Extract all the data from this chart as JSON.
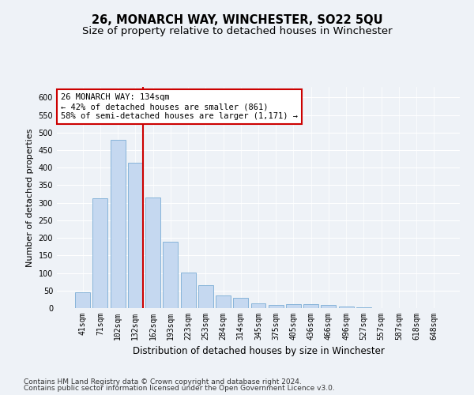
{
  "title": "26, MONARCH WAY, WINCHESTER, SO22 5QU",
  "subtitle": "Size of property relative to detached houses in Winchester",
  "xlabel": "Distribution of detached houses by size in Winchester",
  "ylabel": "Number of detached properties",
  "categories": [
    "41sqm",
    "71sqm",
    "102sqm",
    "132sqm",
    "162sqm",
    "193sqm",
    "223sqm",
    "253sqm",
    "284sqm",
    "314sqm",
    "345sqm",
    "375sqm",
    "405sqm",
    "436sqm",
    "466sqm",
    "496sqm",
    "527sqm",
    "557sqm",
    "587sqm",
    "618sqm",
    "648sqm"
  ],
  "values": [
    45,
    312,
    480,
    415,
    315,
    190,
    102,
    65,
    37,
    30,
    13,
    10,
    12,
    12,
    8,
    5,
    3,
    1,
    1,
    1,
    1
  ],
  "bar_color": "#c5d8f0",
  "bar_edge_color": "#7aadd4",
  "bar_width": 0.85,
  "red_line_index": 3,
  "red_line_color": "#cc0000",
  "annotation_text": "26 MONARCH WAY: 134sqm\n← 42% of detached houses are smaller (861)\n58% of semi-detached houses are larger (1,171) →",
  "annotation_box_color": "#ffffff",
  "annotation_box_edge": "#cc0000",
  "ylim": [
    0,
    630
  ],
  "yticks": [
    0,
    50,
    100,
    150,
    200,
    250,
    300,
    350,
    400,
    450,
    500,
    550,
    600
  ],
  "footer_line1": "Contains HM Land Registry data © Crown copyright and database right 2024.",
  "footer_line2": "Contains public sector information licensed under the Open Government Licence v3.0.",
  "background_color": "#eef2f7",
  "plot_bg_color": "#eef2f7",
  "grid_color": "#ffffff",
  "title_fontsize": 10.5,
  "subtitle_fontsize": 9.5,
  "xlabel_fontsize": 8.5,
  "ylabel_fontsize": 8,
  "tick_fontsize": 7,
  "annotation_fontsize": 7.5,
  "footer_fontsize": 6.5
}
